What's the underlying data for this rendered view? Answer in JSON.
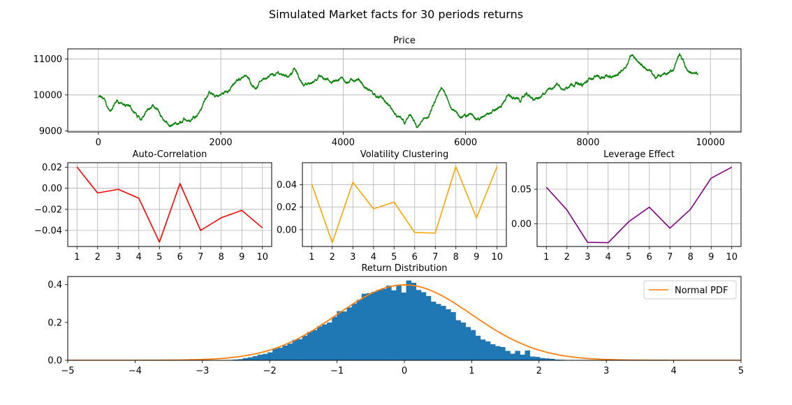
{
  "figure": {
    "suptitle": "Simulated Market facts for 30 periods returns"
  },
  "chart_data": [
    {
      "id": "price",
      "type": "line",
      "title": "Price",
      "color": "#008000",
      "xlim": [
        -500,
        10500
      ],
      "ylim": [
        8970,
        11280
      ],
      "xticks": [
        0,
        2000,
        4000,
        6000,
        8000,
        10000
      ],
      "yticks": [
        9000,
        10000,
        11000
      ],
      "grid": true,
      "n_points": 10000,
      "waypoints_x": [
        0,
        100,
        200,
        300,
        400,
        500,
        600,
        700,
        800,
        900,
        1000,
        1100,
        1200,
        1300,
        1400,
        1500,
        1600,
        1700,
        1800,
        1900,
        2000,
        2100,
        2200,
        2300,
        2400,
        2500,
        2600,
        2700,
        2800,
        2900,
        3000,
        3100,
        3200,
        3300,
        3400,
        3500,
        3600,
        3700,
        3800,
        3900,
        4000,
        4100,
        4200,
        4300,
        4400,
        4500,
        4600,
        4700,
        4800,
        4900,
        5000,
        5100,
        5200,
        5300,
        5400,
        5500,
        5600,
        5700,
        5800,
        5900,
        6000,
        6100,
        6200,
        6300,
        6400,
        6500,
        6600,
        6700,
        6800,
        6900,
        7000,
        7100,
        7200,
        7300,
        7400,
        7500,
        7600,
        7700,
        7800,
        7900,
        8000,
        8100,
        8200,
        8300,
        8400,
        8500,
        8600,
        8700,
        8800,
        8900,
        9000,
        9100,
        9200,
        9300,
        9400,
        9500,
        9600,
        9700,
        9800,
        9900,
        10000
      ],
      "waypoints_y": [
        9950,
        9880,
        9550,
        9850,
        9750,
        9700,
        9500,
        9300,
        9600,
        9700,
        9500,
        9250,
        9150,
        9200,
        9350,
        9250,
        9400,
        9700,
        10050,
        9950,
        10000,
        10100,
        10300,
        10450,
        10550,
        10300,
        10200,
        10450,
        10550,
        10600,
        10550,
        10500,
        10750,
        10400,
        10300,
        10350,
        10550,
        10450,
        10350,
        10400,
        10450,
        10350,
        10400,
        10350,
        10150,
        10000,
        9950,
        9800,
        9600,
        9400,
        9200,
        9450,
        9100,
        9300,
        9400,
        9800,
        10200,
        9900,
        9600,
        9400,
        9400,
        9450,
        9350,
        9400,
        9500,
        9600,
        9750,
        10000,
        9900,
        9800,
        10050,
        9850,
        9900,
        10050,
        10150,
        10300,
        10150,
        10250,
        10350,
        10250,
        10400,
        10500,
        10450,
        10550,
        10500,
        10600,
        10750,
        11100,
        10950,
        10800,
        10700,
        10450,
        10550,
        10600,
        10700,
        11150,
        10750,
        10600,
        10550
      ]
    },
    {
      "id": "autocorr",
      "type": "line",
      "title": "Auto-Correlation",
      "color": "#ff0000",
      "x": [
        1,
        2,
        3,
        4,
        5,
        6,
        7,
        8,
        9,
        10
      ],
      "values": [
        0.02,
        -0.0045,
        -0.001,
        -0.0095,
        -0.051,
        0.0045,
        -0.04,
        -0.028,
        -0.021,
        -0.0375
      ],
      "xlim": [
        0.55,
        10.45
      ],
      "ylim": [
        -0.0552,
        0.0242
      ],
      "yticks": [
        0.02,
        0.0,
        -0.02,
        -0.04
      ],
      "ytick_labels": [
        "0.02",
        "0.00",
        "−0.02",
        "−0.04"
      ],
      "grid": true
    },
    {
      "id": "volclust",
      "type": "line",
      "title": "Volatility Clustering",
      "color": "#ffa500",
      "x": [
        1,
        2,
        3,
        4,
        5,
        6,
        7,
        8,
        9,
        10
      ],
      "values": [
        0.0405,
        -0.0115,
        0.042,
        0.0185,
        0.0245,
        -0.0025,
        -0.003,
        0.056,
        0.0105,
        0.056
      ],
      "xlim": [
        0.55,
        10.45
      ],
      "ylim": [
        -0.0149,
        0.0594
      ],
      "yticks": [
        0.04,
        0.02,
        0.0
      ],
      "ytick_labels": [
        "0.04",
        "0.02",
        "0.00"
      ],
      "grid": true
    },
    {
      "id": "leverage",
      "type": "line",
      "title": "Leverage Effect",
      "color": "#800080",
      "x": [
        1,
        2,
        3,
        4,
        5,
        6,
        7,
        8,
        9,
        10
      ],
      "values": [
        0.053,
        0.02,
        -0.027,
        -0.0275,
        0.003,
        0.024,
        -0.0065,
        0.021,
        0.066,
        0.082
      ],
      "xlim": [
        0.55,
        10.45
      ],
      "ylim": [
        -0.033,
        0.0885
      ],
      "yticks": [
        0.05,
        0.0
      ],
      "ytick_labels": [
        "0.05",
        "0.00"
      ],
      "grid": true
    },
    {
      "id": "returns",
      "type": "bar",
      "title": "Return Distribution",
      "color": "#1f77b4",
      "line_color": "#ff7f0e",
      "legend": "Normal PDF",
      "legend_position": "top-right",
      "xlim": [
        -5,
        5
      ],
      "ylim": [
        0,
        0.443
      ],
      "xticks": [
        -5,
        -4,
        -3,
        -2,
        -1,
        0,
        1,
        2,
        3,
        4,
        5
      ],
      "xtick_labels": [
        "−5",
        "−4",
        "−3",
        "−2",
        "−1",
        "0",
        "1",
        "2",
        "3",
        "4",
        "5"
      ],
      "yticks": [
        0.0,
        0.2,
        0.4
      ],
      "ytick_labels": [
        "0.0",
        "0.2",
        "0.4"
      ],
      "grid": false,
      "hist_start": -2.62,
      "bin_width": 0.0735,
      "hist_values": [
        0.002,
        0.004,
        0.006,
        0.012,
        0.016,
        0.022,
        0.03,
        0.034,
        0.042,
        0.062,
        0.066,
        0.078,
        0.088,
        0.108,
        0.112,
        0.13,
        0.15,
        0.16,
        0.18,
        0.19,
        0.2,
        0.23,
        0.26,
        0.258,
        0.28,
        0.3,
        0.32,
        0.352,
        0.355,
        0.362,
        0.372,
        0.378,
        0.395,
        0.37,
        0.4,
        0.358,
        0.422,
        0.41,
        0.372,
        0.36,
        0.34,
        0.31,
        0.298,
        0.288,
        0.27,
        0.255,
        0.212,
        0.2,
        0.176,
        0.16,
        0.13,
        0.11,
        0.1,
        0.085,
        0.075,
        0.07,
        0.05,
        0.035,
        0.05,
        0.03,
        0.052,
        0.02,
        0.018,
        0.012,
        0.01,
        0.008,
        0.004,
        0.003,
        0.001,
        0.0
      ],
      "pdf_mu": 0,
      "pdf_sigma": 1
    }
  ]
}
